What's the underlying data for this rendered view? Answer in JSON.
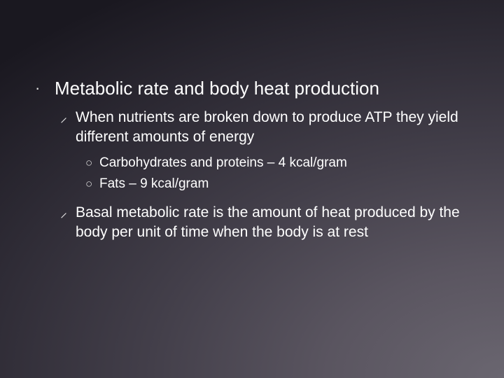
{
  "slide": {
    "background": {
      "gradient_type": "radial",
      "center": "100% 100%",
      "stops": [
        "#6a6670",
        "#5a5560",
        "#433f4a",
        "#2e2b35",
        "#1a1820"
      ]
    },
    "text_color": "#ffffff",
    "bullet_color": "#e8e8e8",
    "font_family": "Arial",
    "level1": {
      "bullet_glyph": "·",
      "text": "Metabolic rate and body heat production",
      "fontsize": 26
    },
    "level2_bullet_glyph": "⸝",
    "level2_items": [
      "When nutrients are broken down to produce ATP they yield different amounts of energy",
      "Basal metabolic rate is the amount of heat produced by the body per unit of time when the body is at rest"
    ],
    "level3_bullet_glyph": "○",
    "level3_items": [
      "Carbohydrates and proteins – 4 kcal/gram",
      "Fats – 9 kcal/gram"
    ],
    "level2_fontsize": 21,
    "level3_fontsize": 19
  }
}
